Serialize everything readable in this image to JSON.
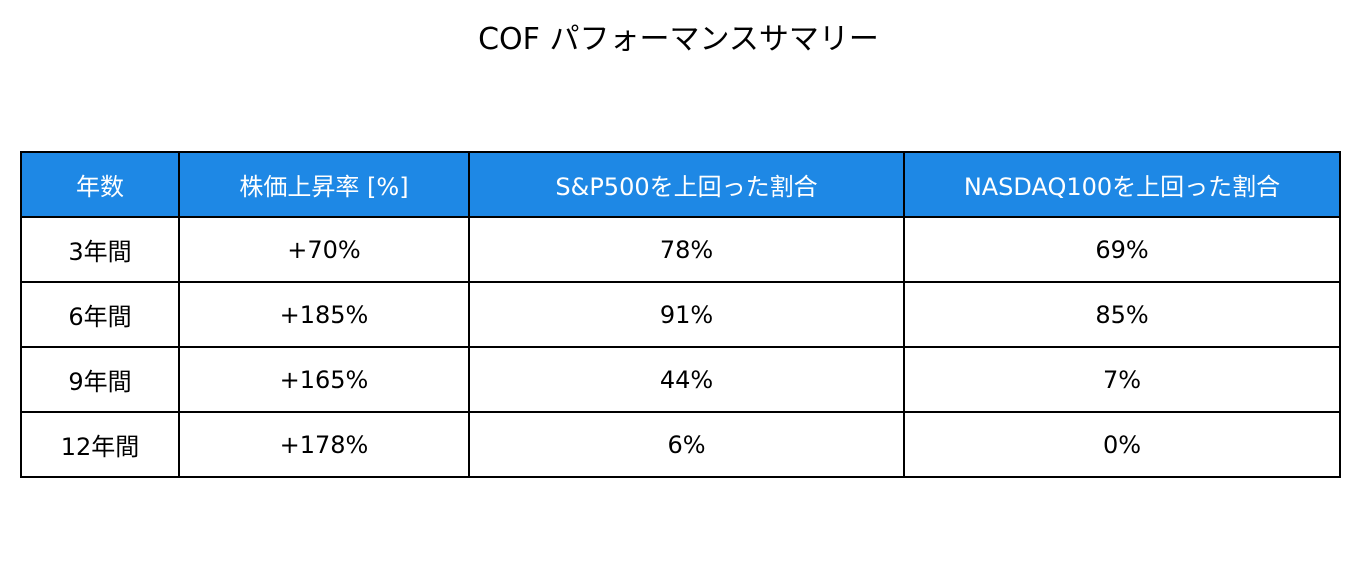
{
  "title": "COF パフォーマンスサマリー",
  "table": {
    "header": [
      "年数",
      "株価上昇率 [%]",
      "S&P500を上回った割合",
      "NASDAQ100を上回った割合"
    ],
    "rows": [
      [
        "3年間",
        "+70%",
        "78%",
        "69%"
      ],
      [
        "6年間",
        "+185%",
        "91%",
        "85%"
      ],
      [
        "9年間",
        "+165%",
        "44%",
        "7%"
      ],
      [
        "12年間",
        "+178%",
        "6%",
        "0%"
      ]
    ]
  }
}
